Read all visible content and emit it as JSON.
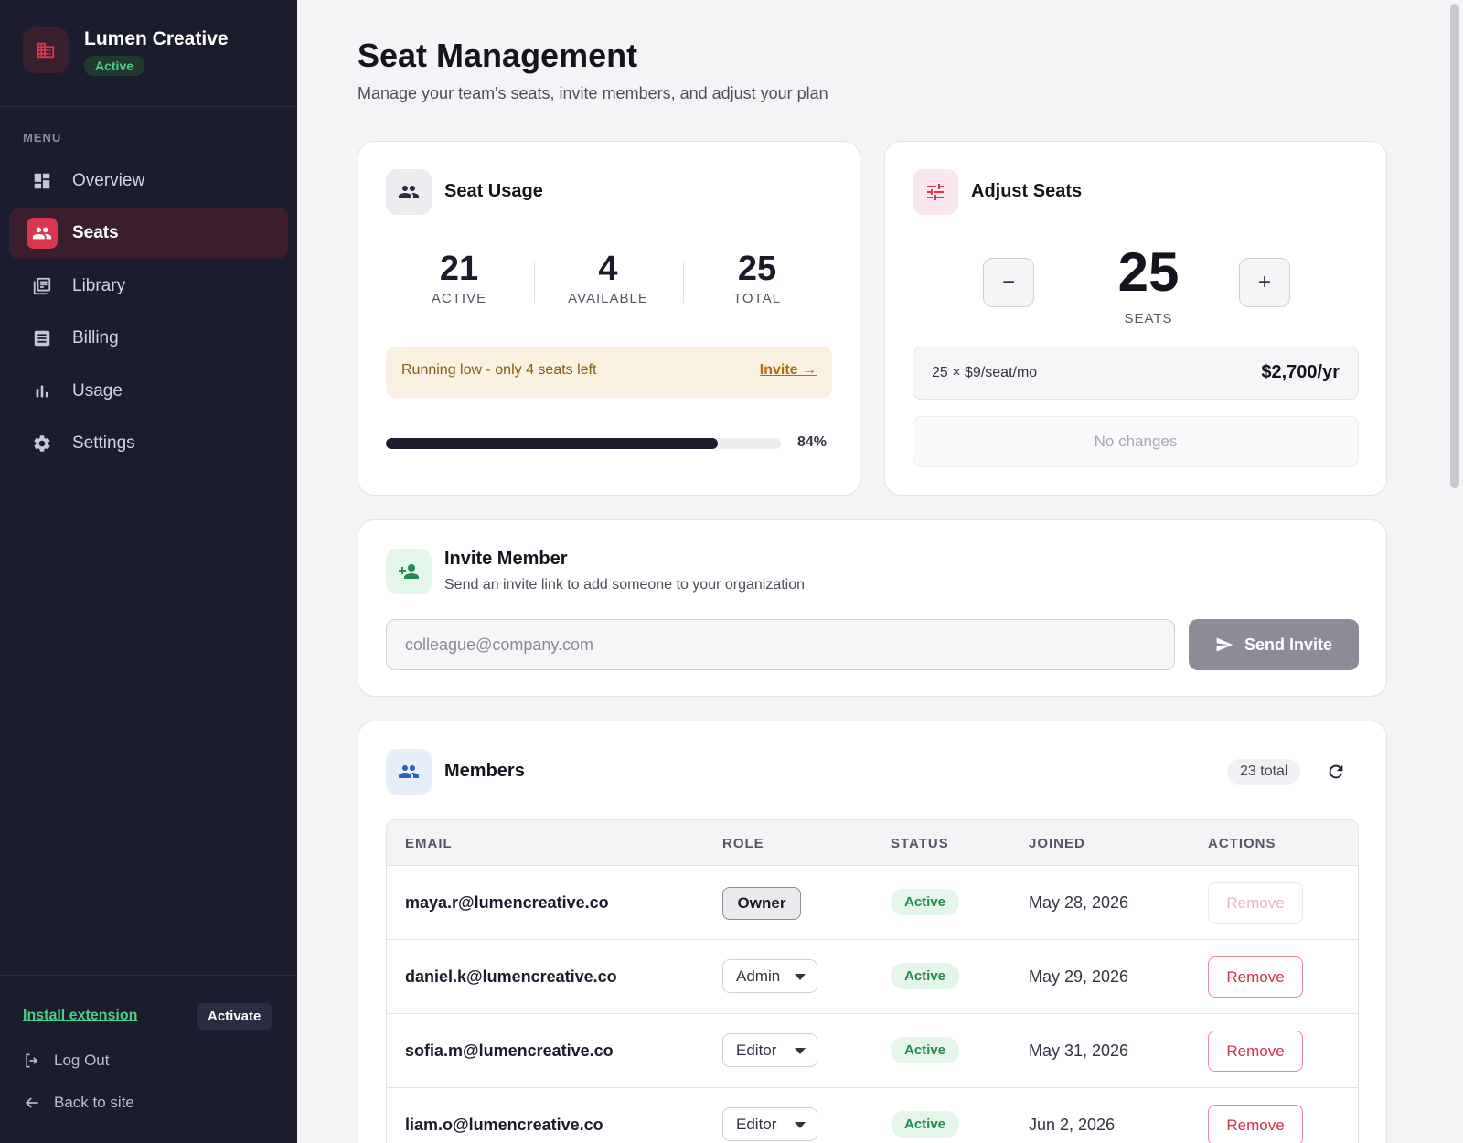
{
  "sidebar": {
    "brand_name": "Lumen Creative",
    "brand_status": "Active",
    "menu_label": "MENU",
    "items": [
      {
        "label": "Overview",
        "icon": "dashboard-icon"
      },
      {
        "label": "Seats",
        "icon": "people-icon",
        "active": true
      },
      {
        "label": "Library",
        "icon": "library-icon"
      },
      {
        "label": "Billing",
        "icon": "receipt-icon"
      },
      {
        "label": "Usage",
        "icon": "bar-chart-icon"
      },
      {
        "label": "Settings",
        "icon": "gear-icon"
      }
    ],
    "install_extension": "Install extension",
    "activate": "Activate",
    "logout": "Log Out",
    "back": "Back to site"
  },
  "header": {
    "title": "Seat Management",
    "subtitle": "Manage your team's seats, invite members, and adjust your plan"
  },
  "seat_usage": {
    "title": "Seat Usage",
    "active_value": "21",
    "active_label": "ACTIVE",
    "available_value": "4",
    "available_label": "AVAILABLE",
    "total_value": "25",
    "total_label": "TOTAL",
    "warning": "Running low - only 4 seats left",
    "warning_link": "Invite →",
    "progress_percent": 84,
    "progress_label": "84%"
  },
  "adjust_seats": {
    "title": "Adjust Seats",
    "minus": "−",
    "plus": "+",
    "count": "25",
    "count_label": "SEATS",
    "price_calc": "25 × $9/seat/mo",
    "price_total": "$2,700/yr",
    "no_changes": "No changes"
  },
  "invite": {
    "title": "Invite Member",
    "subtitle": "Send an invite link to add someone to your organization",
    "placeholder": "colleague@company.com",
    "button": "Send Invite"
  },
  "members": {
    "title": "Members",
    "count": "23 total",
    "columns": [
      "EMAIL",
      "ROLE",
      "STATUS",
      "JOINED",
      "ACTIONS"
    ],
    "rows": [
      {
        "email": "maya.r@lumencreative.co",
        "role": "Owner",
        "status": "Active",
        "joined": "May 28, 2026",
        "action": "Remove"
      },
      {
        "email": "daniel.k@lumencreative.co",
        "role": "Admin",
        "status": "Active",
        "joined": "May 29, 2026",
        "action": "Remove"
      },
      {
        "email": "sofia.m@lumencreative.co",
        "role": "Editor",
        "status": "Active",
        "joined": "May 31, 2026",
        "action": "Remove"
      },
      {
        "email": "liam.o@lumencreative.co",
        "role": "Editor",
        "status": "Active",
        "joined": "Jun 2, 2026",
        "action": "Remove"
      }
    ]
  },
  "colors": {
    "sidebar_bg": "#1b1c2e",
    "accent_red": "#d9364f",
    "status_green": "#248a4e",
    "warning_bg": "#fbf1e2"
  }
}
